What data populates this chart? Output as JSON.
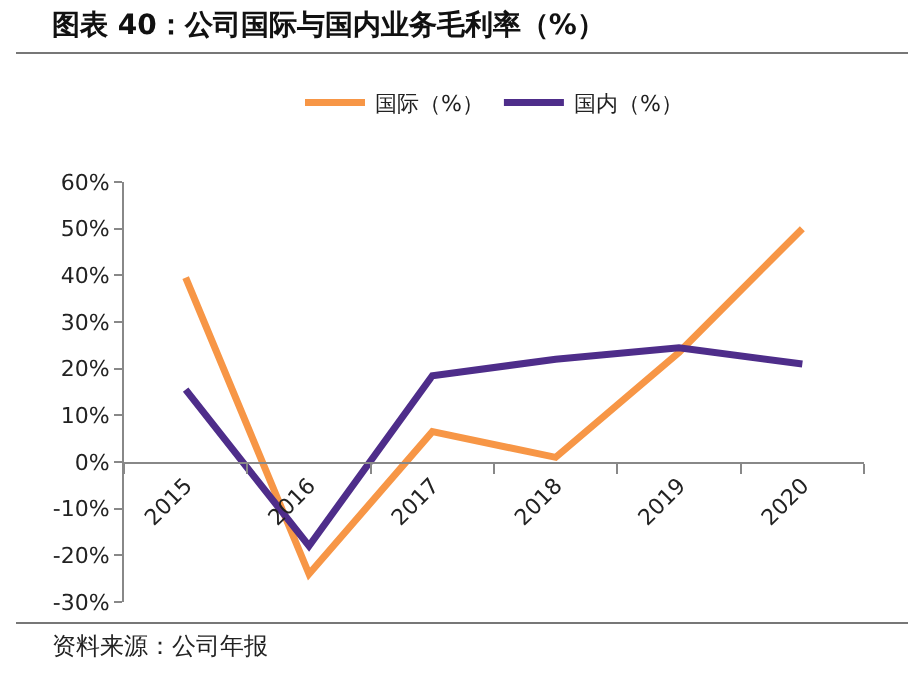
{
  "chart_data": {
    "type": "line",
    "title": "图表 40：公司国际与国内业务毛利率（%）",
    "categories": [
      "2015",
      "2016",
      "2017",
      "2018",
      "2019",
      "2020"
    ],
    "series": [
      {
        "name": "国际（%）",
        "color": "#f79646",
        "values": [
          39.5,
          -24,
          6.5,
          1,
          23.5,
          50
        ]
      },
      {
        "name": "国内（%）",
        "color": "#4e2d8a",
        "values": [
          15.5,
          -18,
          18.5,
          22,
          24.5,
          21
        ]
      }
    ],
    "ylim": [
      -30,
      60
    ],
    "yticks": [
      {
        "value": -30,
        "label": "-30%"
      },
      {
        "value": -20,
        "label": "-20%"
      },
      {
        "value": -10,
        "label": "-10%"
      },
      {
        "value": 0,
        "label": "0%"
      },
      {
        "value": 10,
        "label": "10%"
      },
      {
        "value": 20,
        "label": "20%"
      },
      {
        "value": 30,
        "label": "30%"
      },
      {
        "value": 40,
        "label": "40%"
      },
      {
        "value": 50,
        "label": "50%"
      },
      {
        "value": 60,
        "label": "60%"
      }
    ],
    "grid": false,
    "legend": "top",
    "marker": "none",
    "line_style": "solid",
    "annotations": [
      "资料来源：公司年报"
    ]
  }
}
